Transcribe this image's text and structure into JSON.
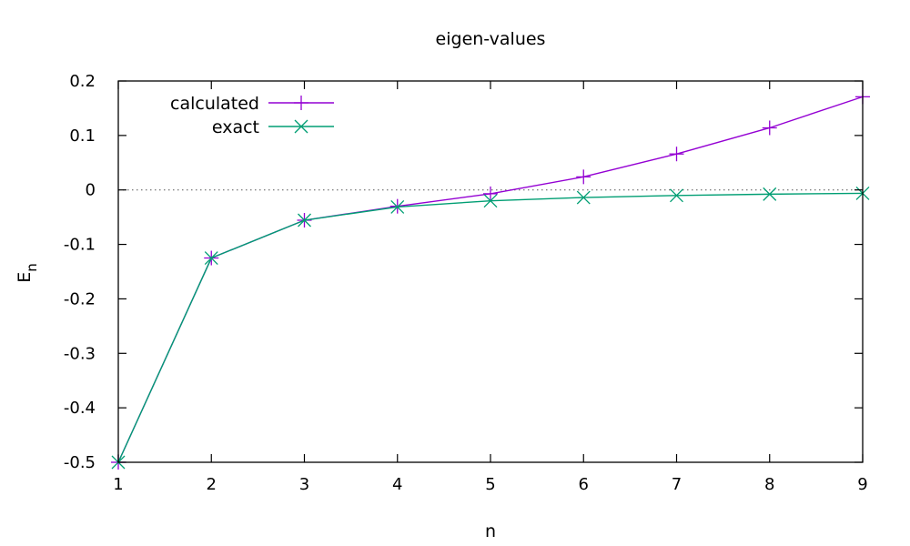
{
  "chart_data": {
    "type": "line",
    "title": "eigen-values",
    "xlabel": "n",
    "ylabel": {
      "main": "E",
      "sub": "n"
    },
    "xlim": [
      1,
      9
    ],
    "ylim": [
      -0.5,
      0.2
    ],
    "xticks": [
      "1",
      "2",
      "3",
      "4",
      "5",
      "6",
      "7",
      "8",
      "9"
    ],
    "yticks": [
      "-0.5",
      "-0.4",
      "-0.3",
      "-0.2",
      "-0.1",
      "0",
      "0.1",
      "0.2"
    ],
    "x": [
      1,
      2,
      3,
      4,
      5,
      6,
      7,
      8,
      9
    ],
    "zero_line": true,
    "legend_position": "top-left",
    "series": [
      {
        "name": "calculated",
        "color": "#9400d3",
        "marker": "plus",
        "values": [
          -0.5,
          -0.125,
          -0.0556,
          -0.03,
          -0.007,
          0.024,
          0.066,
          0.114,
          0.171
        ]
      },
      {
        "name": "exact",
        "color": "#009e73",
        "marker": "cross",
        "values": [
          -0.5,
          -0.125,
          -0.0556,
          -0.03125,
          -0.02,
          -0.0139,
          -0.0102,
          -0.0078,
          -0.0062
        ]
      }
    ]
  }
}
